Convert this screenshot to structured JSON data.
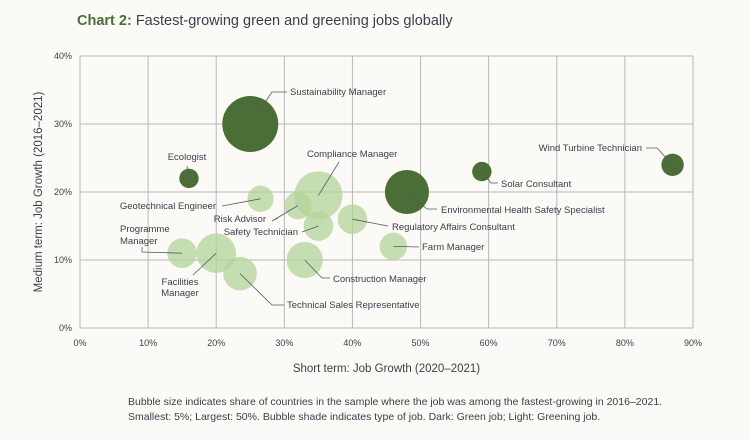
{
  "title": {
    "prefix": "Chart 2:",
    "text": "Fastest-growing green and greening jobs globally"
  },
  "footnote": {
    "line1": "Bubble size indicates share of countries in the sample where the job was among the fastest-growing in 2016–2021.",
    "line2": "Smallest: 5%; Largest: 50%. Bubble shade indicates type of job. Dark: Green job; Light: Greening job."
  },
  "colors": {
    "green_job": "#4a6e35",
    "greening_job": "#b3d49a",
    "grid": "#b8b8b8",
    "background": "#fcfaf6"
  },
  "chart_data": {
    "type": "scatter",
    "subtype": "bubble",
    "xlabel": "Short term: Job Growth (2020–2021)",
    "ylabel": "Medium term: Job Growth (2016–2021)",
    "xlim": [
      0,
      90
    ],
    "ylim": [
      0,
      40
    ],
    "xticks": [
      "0%",
      "10%",
      "20%",
      "30%",
      "40%",
      "50%",
      "60%",
      "70%",
      "80%",
      "90%"
    ],
    "yticks": [
      "0%",
      "10%",
      "20%",
      "30%",
      "40%"
    ],
    "grid": true,
    "size_legend": {
      "min": 5,
      "max": 50,
      "unit": "% of countries"
    },
    "points": [
      {
        "label": "Sustainability Manager",
        "x": 25,
        "y": 30,
        "size": 50,
        "type": "green"
      },
      {
        "label": "Ecologist",
        "x": 16,
        "y": 22,
        "size": 6,
        "type": "green"
      },
      {
        "label": "Compliance Manager",
        "x": 35,
        "y": 19.5,
        "size": 37,
        "type": "greening"
      },
      {
        "label": "Geotechnical Engineer",
        "x": 26.5,
        "y": 19,
        "size": 11,
        "type": "greening"
      },
      {
        "label": "Risk Advisor",
        "x": 32,
        "y": 18,
        "size": 12,
        "type": "greening"
      },
      {
        "label": "Safety Technician",
        "x": 35,
        "y": 15,
        "size": 14,
        "type": "greening"
      },
      {
        "label": "Regulatory Affairs Consultant",
        "x": 40,
        "y": 16,
        "size": 14,
        "type": "greening"
      },
      {
        "label": "Environmental Health Safety Specialist",
        "x": 48,
        "y": 20,
        "size": 31,
        "type": "green"
      },
      {
        "label": "Farm Manager",
        "x": 46,
        "y": 12,
        "size": 12,
        "type": "greening"
      },
      {
        "label": "Solar Consultant",
        "x": 59,
        "y": 23,
        "size": 6,
        "type": "green"
      },
      {
        "label": "Wind Turbine Technician",
        "x": 87,
        "y": 24,
        "size": 8,
        "type": "green"
      },
      {
        "label": "Programme Manager",
        "x": 15,
        "y": 11,
        "size": 14,
        "type": "greening"
      },
      {
        "label": "Facilities Manager",
        "x": 20,
        "y": 11,
        "size": 25,
        "type": "greening"
      },
      {
        "label": "Technical Sales Representative",
        "x": 23.5,
        "y": 8,
        "size": 18,
        "type": "greening"
      },
      {
        "label": "Construction Manager",
        "x": 33,
        "y": 10,
        "size": 21,
        "type": "greening"
      }
    ]
  }
}
